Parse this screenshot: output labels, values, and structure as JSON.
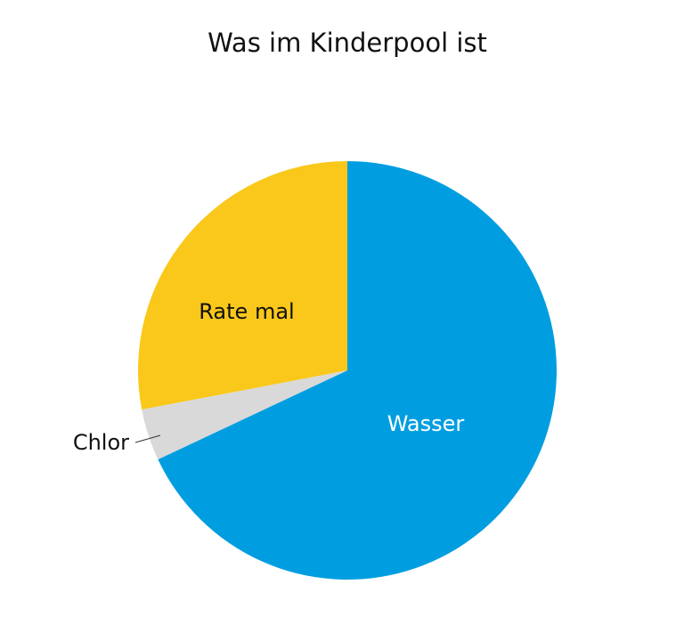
{
  "chart_data": {
    "type": "pie",
    "title": "Was im Kinderpool ist",
    "categories": [
      "Wasser",
      "Chlor",
      "Rate mal"
    ],
    "values": [
      68,
      4,
      28
    ],
    "colors": [
      "#009ee0",
      "#d9d9d9",
      "#f9c81b"
    ]
  }
}
